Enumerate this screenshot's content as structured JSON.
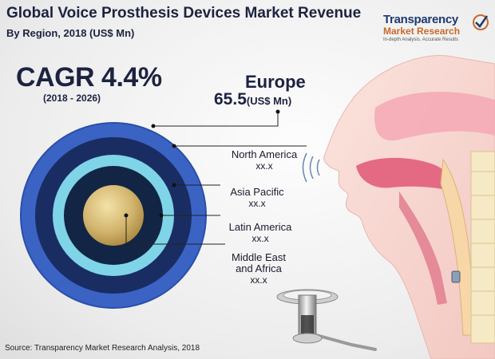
{
  "title": "Global Voice Prosthesis Devices Market Revenue",
  "subtitle": "By Region, 2018 (US$ Mn)",
  "logo": {
    "line1": "Transparency",
    "line2": "Market Research",
    "tagline": "In-depth Analysis. Accurate Results"
  },
  "cagr": {
    "label": "CAGR 4.4%",
    "period": "(2018 - 2026)"
  },
  "source": "Source: Transparency Market Research Analysis, 2018",
  "colors": {
    "europe": "#3a63c4",
    "north_america": "#1a2d63",
    "asia_pacific": "#7fd4e8",
    "latin_america": "#122545",
    "middle_east_africa": "#c9a85c"
  },
  "chart_data": {
    "type": "nested-circles",
    "title": "Global Voice Prosthesis Devices Market Revenue",
    "subtitle": "By Region, 2018 (US$ Mn)",
    "unit": "(US$ Mn)",
    "series": [
      {
        "name": "Europe",
        "value": 65.5,
        "label": "65.5"
      },
      {
        "name": "North America",
        "value": null,
        "label": "xx.x"
      },
      {
        "name": "Asia Pacific",
        "value": null,
        "label": "xx.x"
      },
      {
        "name": "Latin America",
        "value": null,
        "label": "xx.x"
      },
      {
        "name": "Middle East and Africa",
        "value": null,
        "label": "xx.x"
      }
    ],
    "name_lines": {
      "middle_east_africa": [
        "Middle East",
        "and Africa"
      ]
    }
  }
}
